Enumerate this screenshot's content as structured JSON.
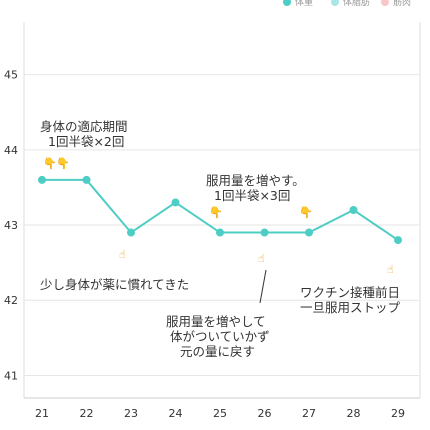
{
  "legend": [
    {
      "label": "体重",
      "color": "#4ecdc4"
    },
    {
      "label": "体脂肪",
      "color": "#a8e6e8"
    },
    {
      "label": "筋肉",
      "color": "#f7c6c7"
    }
  ],
  "chart_data": {
    "type": "line",
    "title": "",
    "xlabel": "",
    "ylabel": "",
    "x": [
      "21",
      "22",
      "23",
      "24",
      "25",
      "26",
      "27",
      "28",
      "29"
    ],
    "series": [
      {
        "values": [
          43.6,
          43.6,
          42.9,
          43.3,
          42.9,
          42.9,
          42.9,
          43.2,
          42.8
        ],
        "color": "#4ecdc4"
      }
    ],
    "ylim": [
      40.7,
      45.7
    ],
    "yticks": [
      "41",
      "42",
      "43",
      "44",
      "45"
    ],
    "grid": true,
    "legend_position": "top-right"
  },
  "annotations": {
    "note1": [
      "身体の適応期間",
      "1回半袋×2回"
    ],
    "note2": [
      "服用量を増やす。",
      "1回半袋×3回"
    ],
    "note3": [
      "少し身体が薬に慣れてきた"
    ],
    "note4": [
      "服用量を増やして",
      "体がついていかず",
      "元の量に戻す"
    ],
    "note5": [
      "ワクチン接種前日",
      "一旦服用ストップ"
    ]
  },
  "icons": {
    "down_hand": "👇",
    "point_hand": "☝"
  }
}
